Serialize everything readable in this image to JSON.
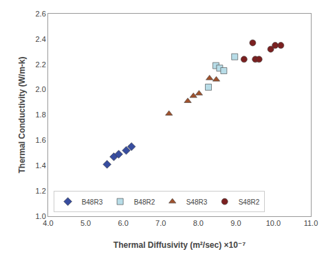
{
  "chart_data": {
    "type": "scatter",
    "xlabel": "Thermal Diffusivity (m²/sec) ×10⁻⁷",
    "ylabel": "Thermal Conductivity (W/m-k)",
    "xlim": [
      4.0,
      11.0
    ],
    "ylim": [
      1.0,
      2.6
    ],
    "xticks": [
      {
        "value": 4,
        "label": "4.0"
      },
      {
        "value": 5,
        "label": "5.0"
      },
      {
        "value": 6,
        "label": "6.0"
      },
      {
        "value": 7,
        "label": "7.0"
      },
      {
        "value": 8,
        "label": "8.0"
      },
      {
        "value": 9,
        "label": "9.0"
      },
      {
        "value": 10,
        "label": "10.0"
      },
      {
        "value": 11,
        "label": "11.0"
      }
    ],
    "yticks": [
      {
        "value": 1,
        "label": "1.0"
      },
      1.2,
      1.4,
      1.6,
      1.8,
      {
        "value": 2,
        "label": "2.0"
      },
      2.2,
      2.4,
      2.6
    ],
    "grid": false,
    "legend": "lower left",
    "series": [
      {
        "name": "B48R3",
        "color": "#374D9F",
        "marker": "diamond",
        "x": [
          5.57,
          5.75,
          5.88,
          6.08,
          6.22
        ],
        "values": [
          1.41,
          1.47,
          1.49,
          1.52,
          1.55
        ]
      },
      {
        "name": "B48R2",
        "color": "#B8DDE8",
        "marker": "square",
        "x": [
          8.27,
          8.47,
          8.57,
          8.68,
          8.97
        ],
        "values": [
          2.02,
          2.19,
          2.17,
          2.15,
          2.26
        ]
      },
      {
        "name": "S48R3",
        "color": "#A0522D",
        "marker": "triangle-up",
        "x": [
          7.22,
          7.72,
          7.87,
          8.02,
          8.3,
          8.48
        ],
        "values": [
          1.81,
          1.91,
          1.95,
          1.97,
          2.09,
          2.08
        ]
      },
      {
        "name": "S48R2",
        "color": "#7B2020",
        "marker": "circle",
        "x": [
          9.22,
          9.45,
          9.52,
          9.62,
          9.93,
          10.05,
          10.2
        ],
        "values": [
          2.24,
          2.37,
          2.24,
          2.24,
          2.32,
          2.35,
          2.35
        ]
      }
    ]
  }
}
